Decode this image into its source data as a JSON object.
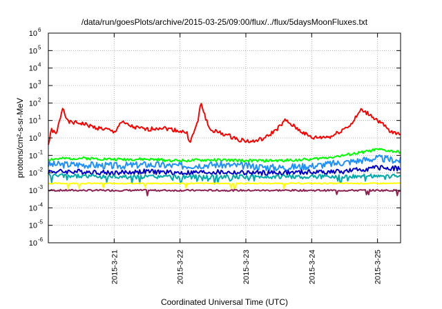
{
  "chart_data": {
    "type": "line",
    "title": "/data/run/goesPlots/archive/2015-03-25/09:00/flux/../flux/5daysMoonFluxes.txt",
    "xlabel": "Coordinated Universal Time (UTC)",
    "ylabel": "protons/cm²-s-sr-MeV",
    "yscale": "log",
    "ylim": [
      1e-06,
      1000000.0
    ],
    "xlim": [
      0,
      5.35
    ],
    "grid": true,
    "x_origin_note": "x in days; tick 1 = 2015-3-21 00:00 UTC",
    "xticks": [
      {
        "x": 1,
        "label": "2015-3-21"
      },
      {
        "x": 2,
        "label": "2015-3-22"
      },
      {
        "x": 3,
        "label": "2015-3-23"
      },
      {
        "x": 4,
        "label": "2015-3-24"
      },
      {
        "x": 5,
        "label": "2015-3-25"
      }
    ],
    "yticks": [
      {
        "exp": 6,
        "label": "10",
        "sup": "6"
      },
      {
        "exp": 5,
        "label": "10",
        "sup": "5"
      },
      {
        "exp": 4,
        "label": "10",
        "sup": "4"
      },
      {
        "exp": 3,
        "label": "10",
        "sup": "3"
      },
      {
        "exp": 2,
        "label": "10",
        "sup": "2"
      },
      {
        "exp": 1,
        "label": "10",
        "sup": "1"
      },
      {
        "exp": 0,
        "label": "10",
        "sup": "0"
      },
      {
        "exp": -1,
        "label": "10",
        "sup": "-1"
      },
      {
        "exp": -2,
        "label": "10",
        "sup": "-2"
      },
      {
        "exp": -3,
        "label": "10",
        "sup": "-3"
      },
      {
        "exp": -4,
        "label": "10",
        "sup": "-4"
      },
      {
        "exp": -5,
        "label": "10",
        "sup": "-5"
      },
      {
        "exp": -6,
        "label": "10",
        "sup": "-6"
      }
    ],
    "series": [
      {
        "color": "#ff0000",
        "base": 2.0,
        "noise": 0.12,
        "seed": 1,
        "points": [
          [
            0,
            0.4
          ],
          [
            0.05,
            3
          ],
          [
            0.12,
            1.5
          ],
          [
            0.22,
            60
          ],
          [
            0.3,
            8
          ],
          [
            0.5,
            7
          ],
          [
            0.7,
            4
          ],
          [
            0.9,
            3
          ],
          [
            1.0,
            2
          ],
          [
            1.1,
            8
          ],
          [
            1.3,
            4
          ],
          [
            1.5,
            3
          ],
          [
            1.7,
            4
          ],
          [
            1.9,
            3
          ],
          [
            2.1,
            2
          ],
          [
            2.15,
            0.6
          ],
          [
            2.2,
            1.5
          ],
          [
            2.28,
            12
          ],
          [
            2.32,
            120
          ],
          [
            2.36,
            30
          ],
          [
            2.45,
            3
          ],
          [
            2.7,
            1.5
          ],
          [
            2.9,
            0.8
          ],
          [
            3.1,
            0.6
          ],
          [
            3.3,
            1
          ],
          [
            3.5,
            4
          ],
          [
            3.6,
            10
          ],
          [
            3.8,
            3
          ],
          [
            4.0,
            1
          ],
          [
            4.3,
            1.2
          ],
          [
            4.6,
            6
          ],
          [
            4.75,
            40
          ],
          [
            4.9,
            20
          ],
          [
            5.1,
            5
          ],
          [
            5.2,
            2
          ],
          [
            5.35,
            2
          ]
        ]
      },
      {
        "color": "#00ff00",
        "base": 0.07,
        "noise": 0.08,
        "seed": 2,
        "points": [
          [
            0,
            0.06
          ],
          [
            0.5,
            0.07
          ],
          [
            1.0,
            0.06
          ],
          [
            1.5,
            0.06
          ],
          [
            2.0,
            0.05
          ],
          [
            2.5,
            0.055
          ],
          [
            3.0,
            0.05
          ],
          [
            3.5,
            0.05
          ],
          [
            4.0,
            0.06
          ],
          [
            4.5,
            0.1
          ],
          [
            5.0,
            0.22
          ],
          [
            5.35,
            0.15
          ]
        ]
      },
      {
        "color": "#1e90ff",
        "base": 0.03,
        "noise": 0.2,
        "seed": 3,
        "points": [
          [
            0,
            0.03
          ],
          [
            0.5,
            0.03
          ],
          [
            1.0,
            0.025
          ],
          [
            1.5,
            0.03
          ],
          [
            2.0,
            0.025
          ],
          [
            2.5,
            0.03
          ],
          [
            3.0,
            0.025
          ],
          [
            3.5,
            0.02
          ],
          [
            4.0,
            0.025
          ],
          [
            4.5,
            0.04
          ],
          [
            5.0,
            0.07
          ],
          [
            5.35,
            0.05
          ]
        ]
      },
      {
        "color": "#0000cc",
        "base": 0.012,
        "noise": 0.14,
        "seed": 4,
        "points": [
          [
            0,
            0.012
          ],
          [
            0.5,
            0.012
          ],
          [
            1.0,
            0.01
          ],
          [
            1.5,
            0.012
          ],
          [
            2.0,
            0.01
          ],
          [
            2.5,
            0.011
          ],
          [
            3.0,
            0.01
          ],
          [
            3.5,
            0.01
          ],
          [
            4.0,
            0.011
          ],
          [
            4.5,
            0.012
          ],
          [
            5.0,
            0.02
          ],
          [
            5.35,
            0.018
          ]
        ]
      },
      {
        "color": "#00aaaa",
        "base": 0.007,
        "noise": 0.12,
        "seed": 5,
        "points": [
          [
            0,
            0.007
          ],
          [
            1.0,
            0.006
          ],
          [
            2.0,
            0.006
          ],
          [
            3.0,
            0.006
          ],
          [
            4.0,
            0.006
          ],
          [
            5.0,
            0.007
          ],
          [
            5.35,
            0.006
          ]
        ]
      },
      {
        "color": "#ffff00",
        "base": 0.0025,
        "noise": 0.03,
        "seed": 6,
        "points": [
          [
            0,
            0.0025
          ],
          [
            1.0,
            0.0025
          ],
          [
            2.0,
            0.0025
          ],
          [
            3.0,
            0.0025
          ],
          [
            4.0,
            0.0025
          ],
          [
            5.0,
            0.0025
          ],
          [
            5.35,
            0.0025
          ]
        ]
      },
      {
        "color": "#8b2252",
        "base": 0.001,
        "noise": 0.05,
        "seed": 7,
        "points": [
          [
            0,
            0.001
          ],
          [
            1.0,
            0.001
          ],
          [
            2.0,
            0.001
          ],
          [
            3.0,
            0.001
          ],
          [
            4.0,
            0.001
          ],
          [
            5.0,
            0.001
          ],
          [
            5.35,
            0.001
          ]
        ]
      }
    ]
  }
}
